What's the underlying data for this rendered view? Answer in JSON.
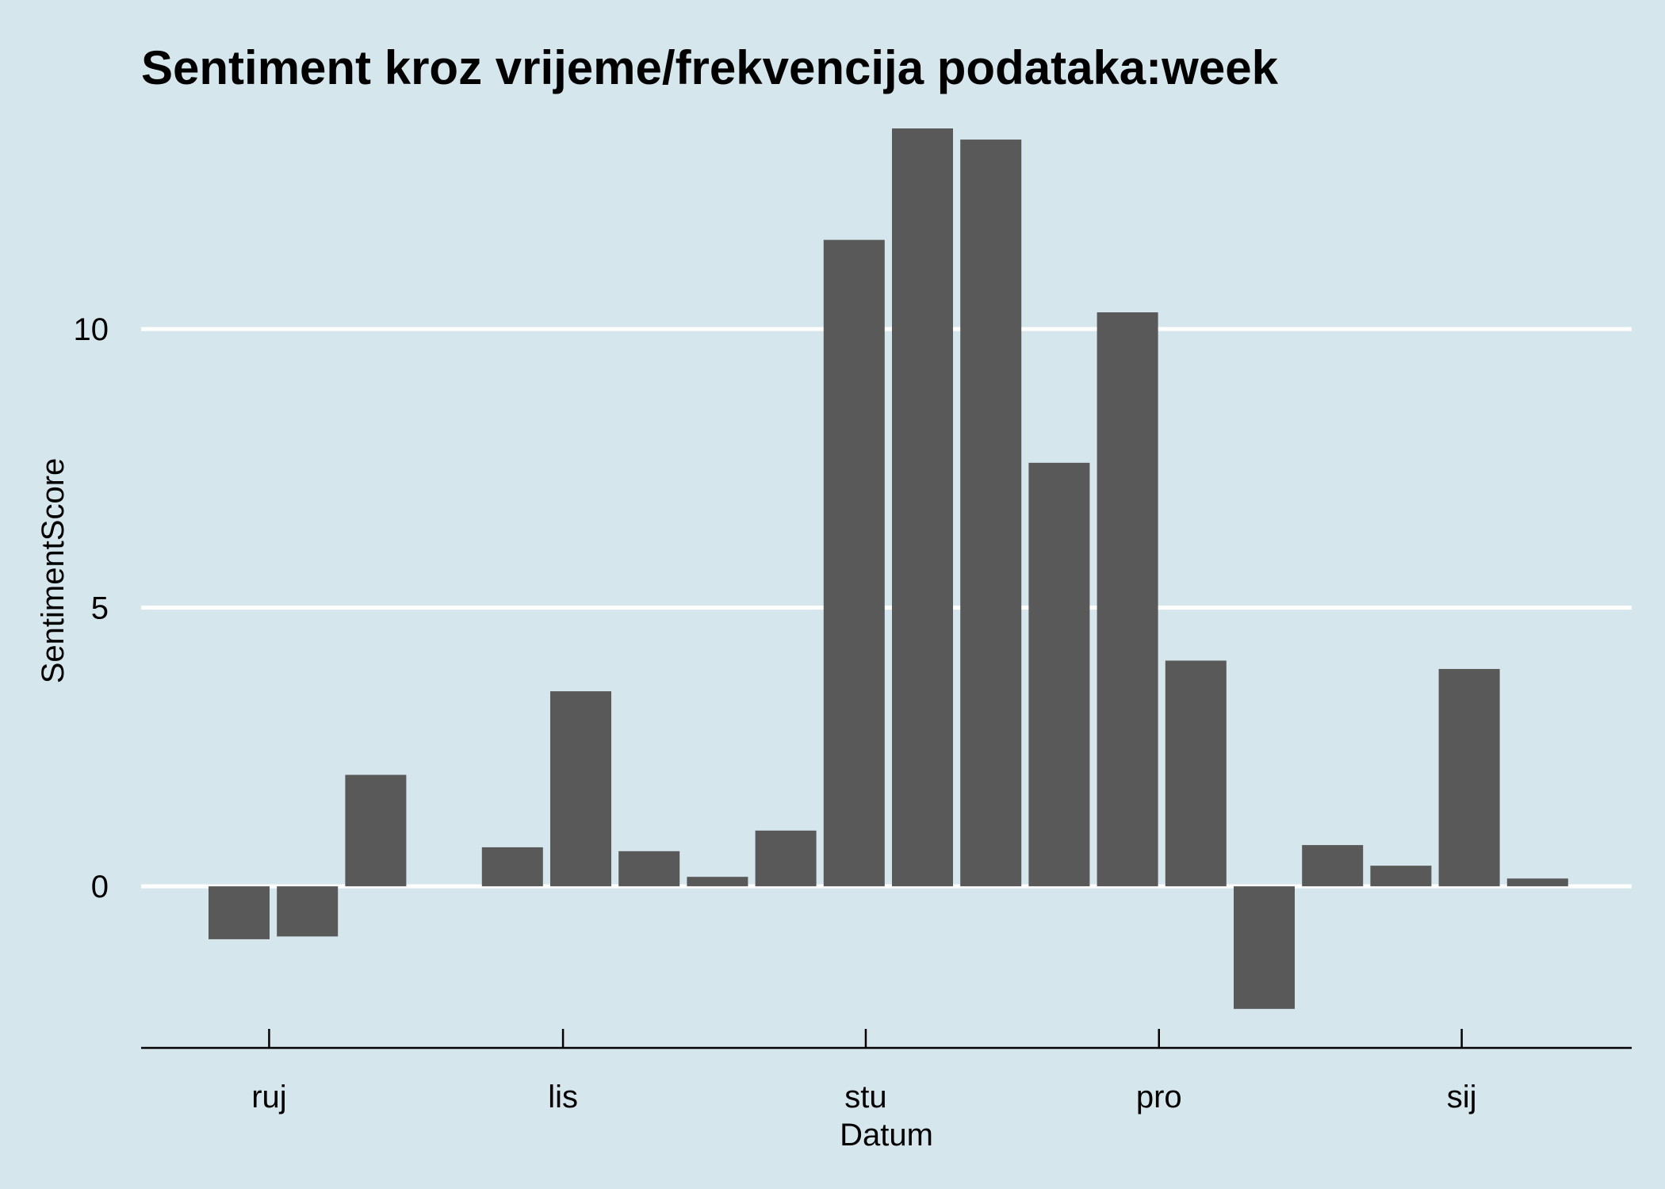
{
  "colors": {
    "background": "#d6e6ed",
    "bar": "#595959",
    "grid": "#ffffff",
    "axis": "#000000"
  },
  "chart_data": {
    "type": "bar",
    "title": "Sentiment kroz vrijeme/frekvencija podataka:week",
    "xlabel": "Datum",
    "ylabel": "SentimentScore",
    "ylim": [
      -2.9,
      13.7
    ],
    "y_ticks": [
      0,
      5,
      10
    ],
    "x_ticks": [
      {
        "label": "ruj",
        "week": 1.44
      },
      {
        "label": "lis",
        "week": 5.74
      },
      {
        "label": "stu",
        "week": 10.17
      },
      {
        "label": "pro",
        "week": 14.46
      },
      {
        "label": "sij",
        "week": 18.89
      }
    ],
    "grid": "horizontal",
    "legend": "none",
    "bars": [
      {
        "week": 1,
        "value": -0.95
      },
      {
        "week": 2,
        "value": -0.9
      },
      {
        "week": 3,
        "value": 2.0
      },
      {
        "week": 5,
        "value": 0.7
      },
      {
        "week": 6,
        "value": 3.5
      },
      {
        "week": 7,
        "value": 0.63
      },
      {
        "week": 8,
        "value": 0.17
      },
      {
        "week": 9,
        "value": 1.0
      },
      {
        "week": 10,
        "value": 11.6
      },
      {
        "week": 11,
        "value": 13.6
      },
      {
        "week": 12,
        "value": 13.4
      },
      {
        "week": 13,
        "value": 7.6
      },
      {
        "week": 14,
        "value": 10.3
      },
      {
        "week": 15,
        "value": 4.05
      },
      {
        "week": 16,
        "value": -2.2
      },
      {
        "week": 17,
        "value": 0.74
      },
      {
        "week": 18,
        "value": 0.37
      },
      {
        "week": 19,
        "value": 3.9
      },
      {
        "week": 20,
        "value": 0.14
      }
    ]
  }
}
